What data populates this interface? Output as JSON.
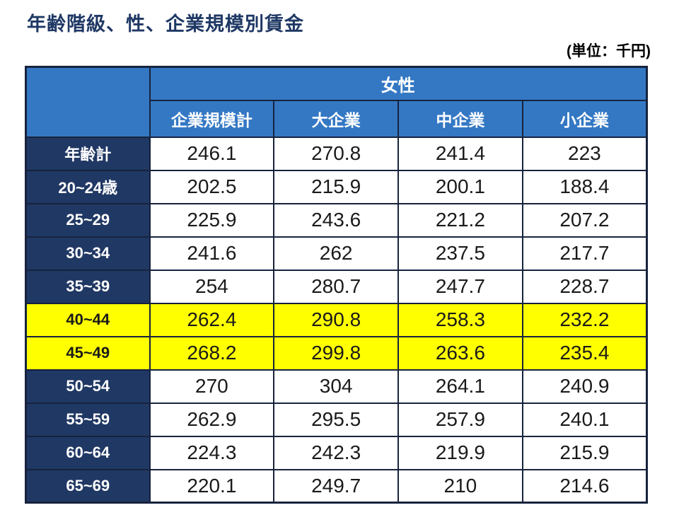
{
  "page": {
    "title": "年齢階級、性、企業規模別賃金",
    "unit_label": "(単位：千円)"
  },
  "chart_data": {
    "type": "table",
    "title": "年齢階級、性、企業規模別賃金",
    "unit": "千円",
    "group_header": "女性",
    "columns": [
      "企業規模計",
      "大企業",
      "中企業",
      "小企業"
    ],
    "rows": [
      {
        "label": "年齢計",
        "values": [
          246.1,
          270.8,
          241.4,
          223
        ],
        "highlight": false
      },
      {
        "label": "20~24歳",
        "values": [
          202.5,
          215.9,
          200.1,
          188.4
        ],
        "highlight": false
      },
      {
        "label": "25~29",
        "values": [
          225.9,
          243.6,
          221.2,
          207.2
        ],
        "highlight": false
      },
      {
        "label": "30~34",
        "values": [
          241.6,
          262,
          237.5,
          217.7
        ],
        "highlight": false
      },
      {
        "label": "35~39",
        "values": [
          254,
          280.7,
          247.7,
          228.7
        ],
        "highlight": false
      },
      {
        "label": "40~44",
        "values": [
          262.4,
          290.8,
          258.3,
          232.2
        ],
        "highlight": true
      },
      {
        "label": "45~49",
        "values": [
          268.2,
          299.8,
          263.6,
          235.4
        ],
        "highlight": true
      },
      {
        "label": "50~54",
        "values": [
          270,
          304,
          264.1,
          240.9
        ],
        "highlight": false
      },
      {
        "label": "55~59",
        "values": [
          262.9,
          295.5,
          257.9,
          240.1
        ],
        "highlight": false
      },
      {
        "label": "60~64",
        "values": [
          224.3,
          242.3,
          219.9,
          215.9
        ],
        "highlight": false
      },
      {
        "label": "65~69",
        "values": [
          220.1,
          249.7,
          210,
          214.6
        ],
        "highlight": false
      }
    ],
    "colors": {
      "header_blue": "#3478C4",
      "label_navy": "#203864",
      "highlight_yellow": "#FFFF00",
      "border": "#17233D",
      "title_navy": "#1F3864"
    }
  }
}
